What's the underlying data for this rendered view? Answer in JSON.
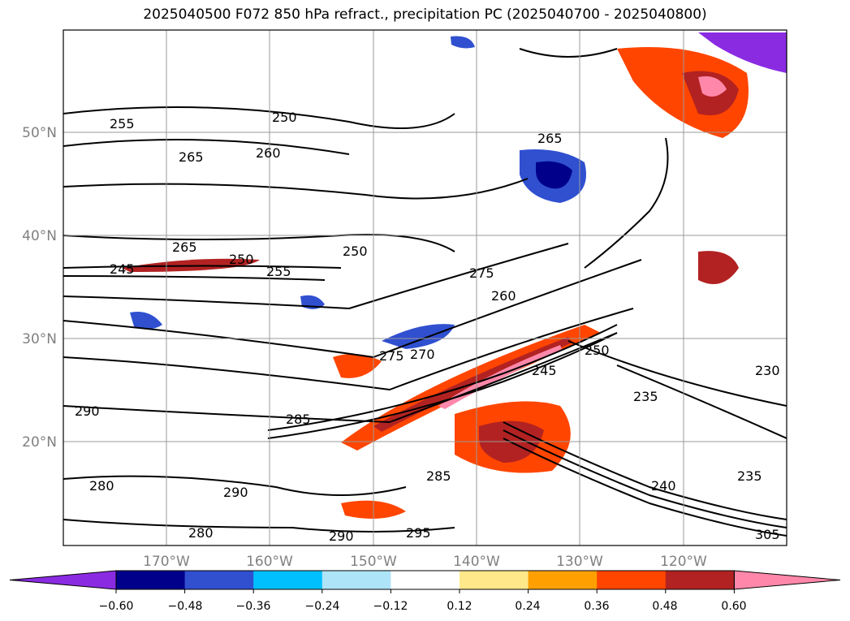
{
  "title": "2025040500 F072 850 hPa refract., precipitation PC (2025040700 - 2025040800)",
  "map": {
    "lat_labels": [
      "50°N",
      "40°N",
      "30°N",
      "20°N"
    ],
    "lon_labels": [
      "170°W",
      "160°W",
      "150°W",
      "140°W",
      "130°W",
      "120°W"
    ],
    "contour_labels": [
      "250",
      "255",
      "260",
      "265",
      "245",
      "250",
      "255",
      "265",
      "250",
      "275",
      "260",
      "265",
      "275",
      "270",
      "285",
      "290",
      "280",
      "290",
      "285",
      "280",
      "290",
      "295",
      "235",
      "240",
      "230",
      "245",
      "250",
      "235",
      "305"
    ]
  },
  "colorbar": {
    "ticks": [
      "−0.60",
      "−0.48",
      "−0.36",
      "−0.24",
      "−0.12",
      "0.12",
      "0.24",
      "0.36",
      "0.48",
      "0.60"
    ],
    "colors": [
      "#8a2be2",
      "#00008b",
      "#3050d0",
      "#00bfff",
      "#aee4f8",
      "#ffffff",
      "#ffe88a",
      "#ffa000",
      "#ff4500",
      "#b22222",
      "#ff88aa"
    ]
  }
}
